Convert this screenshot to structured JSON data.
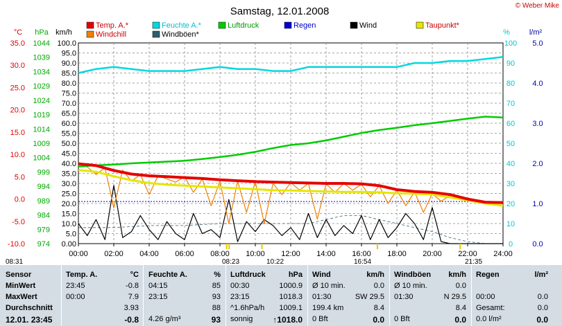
{
  "brand": "© Weber Mike",
  "chart_data": {
    "type": "line",
    "title": "Samstag, 12.01.2008",
    "x_ticks": [
      "00:00",
      "02:00",
      "04:00",
      "06:00",
      "08:00",
      "10:00",
      "12:00",
      "14:00",
      "16:00",
      "18:00",
      "20:00",
      "22:00",
      "24:00"
    ],
    "xlim": [
      0,
      24
    ],
    "grid": true,
    "legend_position": "top",
    "legend": [
      {
        "name": "Temp. A.*",
        "color": "#e60000"
      },
      {
        "name": "Feuchte A.*",
        "color": "#00d8e0"
      },
      {
        "name": "Luftdruck",
        "color": "#00cc00"
      },
      {
        "name": "Regen",
        "color": "#0000cc"
      },
      {
        "name": "Wind",
        "color": "#000000"
      },
      {
        "name": "Taupunkt*",
        "color": "#e6e600"
      },
      {
        "name": "Windchill",
        "color": "#f08000"
      },
      {
        "name": "Windböen*",
        "color": "#2f5f6f"
      }
    ],
    "axes": {
      "temp": {
        "label": "°C",
        "color": "#e00000",
        "ticks": [
          "35.0",
          "30.0",
          "25.0",
          "20.0",
          "15.0",
          "10.0",
          "5.0",
          "0.0",
          "-5.0",
          "-10.0"
        ],
        "ylim": [
          -10,
          35
        ]
      },
      "pressure": {
        "label": "hPa",
        "color": "#00aa00",
        "ticks": [
          "1044",
          "1039",
          "1034",
          "1029",
          "1024",
          "1019",
          "1014",
          "1009",
          "1004",
          "999",
          "994",
          "989",
          "984",
          "979",
          "974"
        ],
        "ylim": [
          974,
          1044
        ]
      },
      "wind": {
        "label": "km/h",
        "color": "#000000",
        "ticks": [
          "100.0",
          "95.0",
          "90.0",
          "85.0",
          "80.0",
          "75.0",
          "70.0",
          "65.0",
          "60.0",
          "55.0",
          "50.0",
          "45.0",
          "40.0",
          "35.0",
          "30.0",
          "25.0",
          "20.0",
          "15.0",
          "10.0",
          "5.0",
          "0.00"
        ],
        "ylim": [
          0,
          100
        ]
      },
      "humidity": {
        "label": "%",
        "color": "#00c8d0",
        "ticks": [
          "100",
          "90",
          "80",
          "70",
          "60",
          "50",
          "40",
          "30",
          "20",
          "10",
          "0"
        ],
        "ylim": [
          0,
          100
        ]
      },
      "rain": {
        "label": "l/m²",
        "color": "#0000aa",
        "ticks": [
          "5.0",
          "4.0",
          "3.0",
          "2.0",
          "1.0",
          "0.0"
        ],
        "ylim": [
          0,
          5
        ]
      }
    },
    "series": [
      {
        "name": "Temp. A.*",
        "axis": "temp",
        "color": "#e60000",
        "x": [
          0,
          1,
          2,
          3,
          4,
          5,
          6,
          7,
          8,
          9,
          10,
          11,
          12,
          13,
          14,
          15,
          16,
          17,
          18,
          19,
          20,
          21,
          22,
          23,
          24
        ],
        "values": [
          7.9,
          7.5,
          6.4,
          5.6,
          5.2,
          5.0,
          4.8,
          4.6,
          4.3,
          4.1,
          3.9,
          3.8,
          3.7,
          3.6,
          3.5,
          3.5,
          3.4,
          3.0,
          2.1,
          1.7,
          1.5,
          1.0,
          0.0,
          -0.7,
          -0.8
        ]
      },
      {
        "name": "Feuchte A.*",
        "axis": "humidity",
        "color": "#00d8e0",
        "x": [
          0,
          1,
          2,
          3,
          4,
          5,
          6,
          7,
          8,
          9,
          10,
          11,
          12,
          13,
          14,
          15,
          16,
          17,
          18,
          19,
          20,
          21,
          22,
          23,
          24
        ],
        "values": [
          85,
          87,
          88,
          87,
          86,
          86,
          86,
          87,
          88,
          87,
          87,
          86,
          86,
          88,
          88,
          88,
          88,
          88,
          88,
          90,
          90,
          91,
          91,
          92,
          93
        ]
      },
      {
        "name": "Luftdruck",
        "axis": "pressure",
        "color": "#00cc00",
        "x": [
          0,
          1,
          2,
          3,
          4,
          5,
          6,
          7,
          8,
          9,
          10,
          11,
          12,
          13,
          14,
          15,
          16,
          17,
          18,
          19,
          20,
          21,
          22,
          23,
          24
        ],
        "values": [
          1000.9,
          1001.3,
          1001.6,
          1002.0,
          1002.3,
          1002.6,
          1002.9,
          1003.5,
          1004.2,
          1005.0,
          1006.0,
          1007.3,
          1008.4,
          1009.0,
          1010.0,
          1011.3,
          1012.6,
          1013.6,
          1014.4,
          1015.3,
          1016.0,
          1016.8,
          1017.6,
          1018.3,
          1018.0
        ]
      },
      {
        "name": "Taupunkt*",
        "axis": "temp",
        "color": "#e6e600",
        "x": [
          0,
          1,
          2,
          3,
          4,
          5,
          6,
          7,
          8,
          9,
          10,
          11,
          12,
          13,
          14,
          15,
          16,
          17,
          18,
          19,
          20,
          21,
          22,
          23,
          24
        ],
        "values": [
          6.5,
          6.1,
          5.1,
          4.2,
          3.6,
          3.2,
          3.0,
          2.8,
          2.6,
          2.4,
          2.2,
          2.0,
          1.9,
          1.8,
          1.7,
          1.6,
          1.6,
          1.5,
          1.3,
          1.2,
          1.0,
          0.4,
          -0.3,
          -1.0,
          -1.5
        ]
      },
      {
        "name": "Windchill",
        "axis": "temp",
        "color": "#f08000",
        "x": [
          0,
          0.5,
          1,
          1.5,
          2,
          2.5,
          3,
          3.5,
          4,
          4.5,
          5,
          5.5,
          6,
          6.5,
          7,
          7.5,
          8,
          8.5,
          9,
          9.5,
          10,
          10.5,
          11,
          11.5,
          12,
          12.5,
          13,
          13.5,
          14,
          14.5,
          15,
          15.5,
          16,
          16.5,
          17,
          17.5,
          18,
          18.5,
          19,
          19.5,
          20,
          20.5,
          21,
          21.5,
          22,
          22.5,
          23,
          23.5,
          24
        ],
        "values": [
          7.9,
          7.2,
          5.5,
          7.0,
          -2.0,
          6.5,
          4.0,
          5.5,
          1.0,
          5.2,
          4.5,
          3.8,
          5.0,
          1.5,
          4.5,
          -1.5,
          4.0,
          -5.5,
          4.0,
          -3.0,
          3.9,
          -5.5,
          3.5,
          1.0,
          3.7,
          2.0,
          3.5,
          -4.5,
          3.4,
          1.5,
          3.5,
          2.0,
          3.3,
          0.5,
          3.0,
          -1.0,
          2.0,
          -1.5,
          1.6,
          -3.0,
          1.2,
          -0.5,
          0.8,
          0.4,
          0.0,
          -0.3,
          -0.7,
          -0.8,
          -0.8
        ]
      },
      {
        "name": "Wind",
        "axis": "wind",
        "color": "#000000",
        "x": [
          0,
          0.5,
          1,
          1.5,
          2,
          2.5,
          3,
          3.5,
          4,
          4.5,
          5,
          5.5,
          6,
          6.5,
          7,
          7.5,
          8,
          8.5,
          9,
          9.5,
          10,
          10.5,
          11,
          11.5,
          12,
          12.5,
          13,
          13.5,
          14,
          14.5,
          15,
          15.5,
          16,
          16.5,
          17,
          17.5,
          18,
          18.5,
          19,
          19.5,
          20,
          20.5,
          21,
          21.5,
          22,
          22.5,
          23,
          23.5,
          24
        ],
        "values": [
          10,
          4,
          12,
          2,
          29,
          3,
          6,
          14,
          7,
          2,
          11,
          5,
          2,
          15,
          5,
          7,
          3,
          22,
          1,
          11,
          6,
          12,
          9,
          4,
          8,
          2,
          15,
          3,
          12,
          4,
          9,
          5,
          14,
          2,
          12,
          3,
          8,
          15,
          10,
          2,
          18,
          1,
          0,
          0,
          0,
          0,
          0,
          0,
          0
        ]
      },
      {
        "name": "Windböen*",
        "axis": "wind",
        "color": "#2f5f6f",
        "x": [
          0,
          2,
          4,
          6,
          8,
          10,
          12,
          13,
          14,
          15,
          16,
          17,
          18,
          19,
          20,
          21,
          22,
          23,
          24
        ],
        "values": [
          8,
          8,
          9,
          9,
          10,
          10,
          10,
          10,
          12,
          14,
          14,
          12,
          10,
          8,
          6,
          3,
          1,
          0,
          0
        ]
      },
      {
        "name": "Regen",
        "axis": "rain",
        "color": "#0000cc",
        "x": [
          0,
          24
        ],
        "values": [
          1.05,
          1.05
        ]
      }
    ],
    "sun_events": [
      {
        "time": "08:31",
        "hour": 8.52,
        "label": "08:31"
      },
      {
        "time": "08:23",
        "hour": 8.38,
        "label": "08:23"
      },
      {
        "time": "10:22",
        "hour": 10.37,
        "label": "10:22"
      },
      {
        "time": "16:54",
        "hour": 16.9,
        "label": "16:54"
      },
      {
        "time": "21:35",
        "hour": 21.58,
        "label": "21:35"
      }
    ]
  },
  "table": {
    "row_labels": [
      "Sensor",
      "MinWert",
      "MaxWert",
      "Durchschnitt",
      "12.01. 23:45"
    ],
    "temp": {
      "header": "Temp. A.",
      "unit": "°C",
      "min_time": "23:45",
      "min": "-0.8",
      "max_time": "00:00",
      "max": "7.9",
      "avg": "3.93",
      "current": "-0.8"
    },
    "humidity": {
      "header": "Feuchte A.",
      "unit": "%",
      "min_time": "04:15",
      "min": "85",
      "max_time": "23:15",
      "max": "93",
      "avg": "88",
      "current_extra": "4.26 g/m³",
      "current": "93"
    },
    "pressure": {
      "header": "Luftdruck",
      "unit": "hPa",
      "min_time": "00:30",
      "min": "1000.9",
      "max_time": "23:15",
      "max": "1018.3",
      "trend": "^1.6hPa/h",
      "avg": "1009.1",
      "weather": "sonnig",
      "current": "↑1018.0"
    },
    "wind": {
      "header": "Wind",
      "unit": "km/h",
      "r1_label": "Ø 10 min.",
      "r1_val": "0.0",
      "r2_time": "01:30",
      "r2_dir": "SW 29.5",
      "r3_label": "199.4 km",
      "r3_val": "8.4",
      "r4_label": "0 Bft",
      "r4_val": "0.0"
    },
    "gusts": {
      "header": "Windböen",
      "unit": "km/h",
      "r1_label": "Ø 10 min.",
      "r1_val": "0.0",
      "r2_time": "01:30",
      "r2_dir": "N 29.5",
      "r3_val": "8.4",
      "r4_label": "0 Bft",
      "r4_val": "0.0"
    },
    "rain": {
      "header": "Regen",
      "unit": "l/m²",
      "r2_time": "00:00",
      "r2_val": "0.0",
      "r3_label": "Gesamt:",
      "r3_val": "0.0",
      "r4_label": "0.0 l/m²",
      "r4_val": "0.0"
    }
  }
}
